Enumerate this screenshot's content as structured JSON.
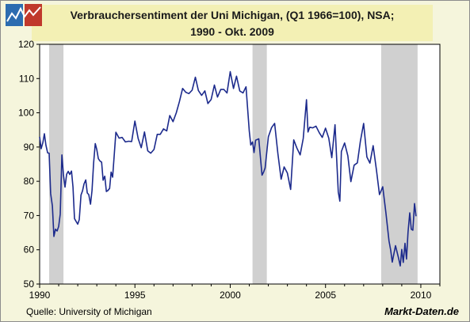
{
  "chart_data": {
    "type": "line",
    "title": "Verbrauchersentiment der Uni Michigan, (Q1 1966=100), NSA;",
    "subtitle": "1990 - Okt. 2009",
    "xlabel": "",
    "ylabel": "",
    "xlim": [
      1990,
      2011
    ],
    "ylim": [
      50,
      120
    ],
    "xticks": [
      1990,
      1995,
      2000,
      2005,
      2010
    ],
    "yticks": [
      50,
      60,
      70,
      80,
      90,
      100,
      110,
      120
    ],
    "grid": false,
    "recession_bands": [
      [
        1990.5,
        1991.25
      ],
      [
        2001.17,
        2001.92
      ],
      [
        2007.92,
        2009.83
      ]
    ],
    "series": [
      {
        "x": [
          1990.0,
          1990.08,
          1990.17,
          1990.25,
          1990.33,
          1990.42,
          1990.5,
          1990.58,
          1990.67,
          1990.75,
          1990.83,
          1990.92,
          1991.0,
          1991.08,
          1991.17,
          1991.25,
          1991.33,
          1991.42,
          1991.5,
          1991.58,
          1991.67,
          1991.75,
          1991.83,
          1991.92,
          1992.0,
          1992.08,
          1992.17,
          1992.25,
          1992.33,
          1992.42,
          1992.5,
          1992.58,
          1992.67,
          1992.75,
          1992.83,
          1992.92,
          1993.0,
          1993.08,
          1993.17,
          1993.25,
          1993.33,
          1993.42,
          1993.5,
          1993.58,
          1993.67,
          1993.75,
          1993.83,
          1993.92,
          1994.0,
          1994.17,
          1994.33,
          1994.5,
          1994.67,
          1994.83,
          1995.0,
          1995.17,
          1995.33,
          1995.5,
          1995.67,
          1995.83,
          1996.0,
          1996.17,
          1996.33,
          1996.5,
          1996.67,
          1996.83,
          1997.0,
          1997.17,
          1997.33,
          1997.5,
          1997.67,
          1997.83,
          1998.0,
          1998.17,
          1998.33,
          1998.5,
          1998.67,
          1998.83,
          1999.0,
          1999.17,
          1999.33,
          1999.5,
          1999.67,
          1999.83,
          2000.0,
          2000.17,
          2000.33,
          2000.5,
          2000.67,
          2000.83,
          2001.0,
          2001.08,
          2001.17,
          2001.25,
          2001.33,
          2001.5,
          2001.67,
          2001.75,
          2001.83,
          2002.0,
          2002.17,
          2002.33,
          2002.5,
          2002.67,
          2002.83,
          2003.0,
          2003.17,
          2003.33,
          2003.5,
          2003.67,
          2003.83,
          2004.0,
          2004.08,
          2004.17,
          2004.33,
          2004.5,
          2004.67,
          2004.83,
          2005.0,
          2005.17,
          2005.33,
          2005.5,
          2005.67,
          2005.75,
          2005.83,
          2006.0,
          2006.17,
          2006.33,
          2006.5,
          2006.67,
          2006.83,
          2007.0,
          2007.17,
          2007.33,
          2007.5,
          2007.67,
          2007.83,
          2008.0,
          2008.17,
          2008.33,
          2008.42,
          2008.5,
          2008.67,
          2008.83,
          2008.92,
          2009.0,
          2009.08,
          2009.17,
          2009.25,
          2009.33,
          2009.42,
          2009.5,
          2009.58,
          2009.67,
          2009.75
        ],
        "values": [
          93.0,
          89.5,
          91.3,
          93.9,
          90.6,
          88.3,
          88.2,
          76.4,
          72.8,
          63.9,
          66.0,
          65.5,
          66.8,
          70.4,
          87.7,
          81.8,
          78.3,
          82.1,
          82.9,
          82.0,
          83.0,
          78.3,
          69.1,
          68.2,
          67.5,
          68.8,
          76.0,
          77.2,
          79.2,
          80.4,
          76.6,
          76.1,
          73.3,
          77.3,
          85.3,
          91.0,
          89.3,
          86.6,
          85.9,
          85.6,
          80.3,
          81.5,
          77.0,
          77.3,
          77.9,
          82.7,
          81.2,
          88.2,
          94.3,
          92.6,
          92.8,
          91.5,
          91.7,
          91.6,
          97.6,
          92.5,
          89.8,
          94.4,
          88.9,
          88.2,
          89.3,
          93.7,
          93.7,
          95.3,
          94.7,
          99.2,
          97.4,
          100.0,
          103.2,
          107.1,
          106.0,
          105.6,
          106.6,
          110.4,
          106.5,
          105.1,
          106.4,
          102.7,
          103.9,
          108.1,
          104.6,
          106.8,
          106.8,
          105.8,
          112.0,
          107.1,
          110.7,
          106.4,
          105.8,
          107.6,
          94.7,
          90.6,
          91.5,
          88.4,
          92.0,
          92.4,
          81.8,
          82.7,
          83.9,
          93.0,
          95.7,
          96.9,
          88.1,
          80.6,
          84.2,
          82.4,
          77.6,
          92.1,
          89.7,
          87.7,
          92.5,
          103.8,
          94.4,
          95.8,
          95.6,
          96.1,
          94.2,
          92.8,
          95.5,
          92.6,
          86.9,
          96.5,
          76.9,
          74.2,
          88.7,
          91.2,
          87.4,
          79.9,
          84.7,
          85.4,
          91.7,
          96.9,
          87.1,
          85.3,
          90.4,
          83.4,
          76.1,
          78.4,
          70.8,
          62.6,
          59.8,
          56.4,
          61.2,
          57.6,
          55.3,
          60.1,
          56.3,
          61.9,
          57.3,
          65.1,
          70.8,
          66.0,
          65.7,
          73.5,
          69.8
        ],
        "color": "#1c2a8c"
      }
    ]
  },
  "footer": {
    "source": "Quelle: University of Michigan",
    "brand": "Markt-Daten.de"
  },
  "logo": {
    "icon": "chart-logo-icon",
    "colors": [
      "#2c6cb0",
      "#c0392b"
    ]
  }
}
